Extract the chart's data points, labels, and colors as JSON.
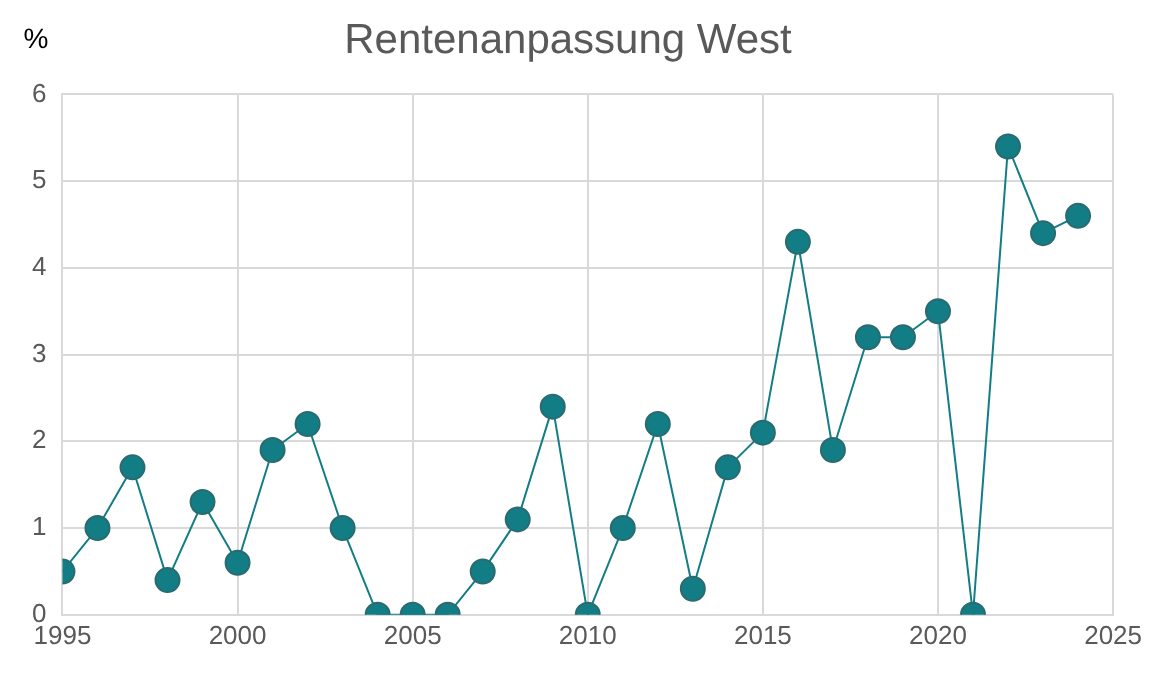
{
  "chart_data": {
    "type": "line",
    "title": "Rentenanpassung West",
    "ylabel": "%",
    "x": [
      1995,
      1996,
      1997,
      1998,
      1999,
      2000,
      2001,
      2002,
      2003,
      2004,
      2005,
      2006,
      2007,
      2008,
      2009,
      2010,
      2011,
      2012,
      2013,
      2014,
      2015,
      2016,
      2017,
      2018,
      2019,
      2020,
      2021,
      2022,
      2023,
      2024
    ],
    "series": [
      {
        "color": "#137d86",
        "values": [
          0.5,
          1.0,
          1.7,
          0.4,
          1.3,
          0.6,
          1.9,
          2.2,
          1.0,
          0,
          0,
          0,
          0.5,
          1.1,
          2.4,
          0,
          1.0,
          2.2,
          0.3,
          1.7,
          2.1,
          4.3,
          1.9,
          3.2,
          3.2,
          3.5,
          0,
          5.4,
          4.4,
          4.6
        ]
      }
    ],
    "xlim": [
      1995,
      2025
    ],
    "xticks": [
      1995,
      2000,
      2005,
      2010,
      2015,
      2020,
      2025
    ],
    "ylim": [
      0,
      6
    ],
    "yticks": [
      0,
      1,
      2,
      3,
      4,
      5,
      6
    ],
    "grid": true,
    "legend": false,
    "marker": "circle",
    "line_style": "solid"
  }
}
